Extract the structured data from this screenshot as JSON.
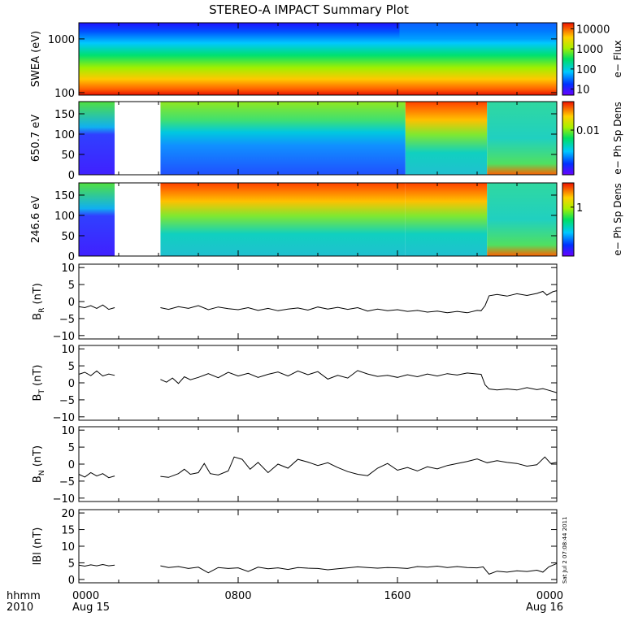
{
  "title": "STEREO-A IMPACT Summary Plot",
  "timestamp_label": "Sat Jul  2 07:08:44 2011",
  "time_axis": {
    "corner_labels": [
      "hhmm",
      "2010"
    ],
    "ticks": [
      {
        "hour": 0,
        "label": "0000",
        "date": "Aug 15"
      },
      {
        "hour": 8,
        "label": "0800",
        "date": ""
      },
      {
        "hour": 16,
        "label": "1600",
        "date": ""
      },
      {
        "hour": 24,
        "label": "0000",
        "date": "Aug 16"
      }
    ],
    "range_hours": [
      0,
      24
    ]
  },
  "colors": {
    "frame": "#000000",
    "line": "#000000",
    "gap": "#ffffff"
  },
  "chart_data": [
    {
      "type": "heatmap",
      "name": "swea",
      "ylabel": "SWEA (eV)",
      "ylog": true,
      "ylim": [
        90,
        2000
      ],
      "yticks": [
        {
          "v": 100,
          "label": "100"
        },
        {
          "v": 1000,
          "label": "1000"
        }
      ],
      "colorbar": {
        "label": "e− Flux",
        "log": true,
        "range": [
          5,
          20000
        ],
        "ticks": [
          {
            "v": 10,
            "label": "10"
          },
          {
            "v": 100,
            "label": "100"
          },
          {
            "v": 1000,
            "label": "1000"
          },
          {
            "v": 10000,
            "label": "10000"
          }
        ]
      },
      "gaps": [],
      "note_shift_hour": 16.1
    },
    {
      "type": "heatmap",
      "name": "pad650",
      "ylabel": "650.7 eV",
      "ylim": [
        0,
        180
      ],
      "yticks": [
        {
          "v": 0,
          "label": "0"
        },
        {
          "v": 50,
          "label": "50"
        },
        {
          "v": 100,
          "label": "100"
        },
        {
          "v": 150,
          "label": "150"
        }
      ],
      "colorbar": {
        "label": "e− Ph Sp Dens",
        "log": true,
        "range": [
          0.0008,
          0.05
        ],
        "ticks": [
          {
            "v": 0.01,
            "label": "0.01"
          }
        ]
      },
      "gaps": [
        [
          1.8,
          4.1
        ]
      ]
    },
    {
      "type": "heatmap",
      "name": "pad246",
      "ylabel": "246.6 eV",
      "ylim": [
        0,
        180
      ],
      "yticks": [
        {
          "v": 0,
          "label": "0"
        },
        {
          "v": 50,
          "label": "50"
        },
        {
          "v": 100,
          "label": "100"
        },
        {
          "v": 150,
          "label": "150"
        }
      ],
      "colorbar": {
        "label": "e− Ph Sp Dens",
        "log": true,
        "range": [
          0.08,
          3.5
        ],
        "ticks": [
          {
            "v": 1,
            "label": "1"
          }
        ]
      },
      "gaps": [
        [
          1.8,
          4.1
        ]
      ]
    },
    {
      "type": "line",
      "name": "br",
      "ylabel_main": "B",
      "ylabel_sub": "R",
      "ylabel_tail": " (nT)",
      "ylim": [
        -11,
        11
      ],
      "yticks": [
        {
          "v": -10,
          "label": "−10"
        },
        {
          "v": -5,
          "label": "−5"
        },
        {
          "v": 0,
          "label": "0"
        },
        {
          "v": 5,
          "label": "5"
        },
        {
          "v": 10,
          "label": "10"
        }
      ],
      "x": [
        0.0,
        0.3,
        0.6,
        0.9,
        1.2,
        1.5,
        1.8,
        4.1,
        4.5,
        5.0,
        5.5,
        6.0,
        6.5,
        7.0,
        7.5,
        8.0,
        8.5,
        9.0,
        9.5,
        10.0,
        10.5,
        11.0,
        11.5,
        12.0,
        12.5,
        13.0,
        13.5,
        14.0,
        14.5,
        15.0,
        15.5,
        16.0,
        16.5,
        17.0,
        17.5,
        18.0,
        18.5,
        19.0,
        19.5,
        20.0,
        20.2,
        20.4,
        20.6,
        21.0,
        21.5,
        22.0,
        22.5,
        23.0,
        23.3,
        23.5,
        23.8,
        24.0
      ],
      "y": [
        -1.5,
        -1.8,
        -1.2,
        -2.0,
        -1.0,
        -2.3,
        -1.8,
        -1.8,
        -2.3,
        -1.5,
        -2.0,
        -1.2,
        -2.4,
        -1.6,
        -2.1,
        -2.4,
        -1.8,
        -2.6,
        -2.0,
        -2.7,
        -2.2,
        -1.9,
        -2.5,
        -1.6,
        -2.2,
        -1.7,
        -2.3,
        -1.8,
        -2.8,
        -2.2,
        -2.7,
        -2.4,
        -2.9,
        -2.6,
        -3.1,
        -2.8,
        -3.3,
        -2.9,
        -3.3,
        -2.6,
        -2.7,
        -1.2,
        1.7,
        2.1,
        1.6,
        2.3,
        1.8,
        2.4,
        3.0,
        1.9,
        2.9,
        3.2
      ]
    },
    {
      "type": "line",
      "name": "bt",
      "ylabel_main": "B",
      "ylabel_sub": "T",
      "ylabel_tail": " (nT)",
      "ylim": [
        -11,
        11
      ],
      "yticks": [
        {
          "v": -10,
          "label": "−10"
        },
        {
          "v": -5,
          "label": "−5"
        },
        {
          "v": 0,
          "label": "0"
        },
        {
          "v": 5,
          "label": "5"
        },
        {
          "v": 10,
          "label": "10"
        }
      ],
      "x": [
        0.0,
        0.3,
        0.6,
        0.9,
        1.2,
        1.5,
        1.8,
        4.1,
        4.4,
        4.7,
        5.0,
        5.3,
        5.6,
        6.0,
        6.5,
        7.0,
        7.5,
        8.0,
        8.5,
        9.0,
        9.5,
        10.0,
        10.5,
        11.0,
        11.5,
        12.0,
        12.5,
        13.0,
        13.5,
        14.0,
        14.5,
        15.0,
        15.5,
        16.0,
        16.5,
        17.0,
        17.5,
        18.0,
        18.5,
        19.0,
        19.5,
        20.0,
        20.2,
        20.4,
        20.6,
        21.0,
        21.5,
        22.0,
        22.5,
        23.0,
        23.3,
        23.6,
        24.0
      ],
      "y": [
        2.5,
        3.1,
        2.1,
        3.5,
        2.0,
        2.6,
        2.2,
        1.0,
        0.2,
        1.4,
        -0.2,
        1.8,
        0.9,
        1.6,
        2.7,
        1.5,
        3.1,
        2.0,
        2.8,
        1.6,
        2.5,
        3.2,
        2.0,
        3.5,
        2.4,
        3.3,
        1.1,
        2.2,
        1.4,
        3.6,
        2.6,
        1.9,
        2.2,
        1.6,
        2.4,
        1.8,
        2.6,
        2.0,
        2.7,
        2.3,
        2.9,
        2.6,
        2.5,
        -0.6,
        -1.8,
        -2.1,
        -1.8,
        -2.1,
        -1.4,
        -2.0,
        -1.7,
        -2.2,
        -2.9
      ]
    },
    {
      "type": "line",
      "name": "bn",
      "ylabel_main": "B",
      "ylabel_sub": "N",
      "ylabel_tail": " (nT)",
      "ylim": [
        -11,
        11
      ],
      "yticks": [
        {
          "v": -10,
          "label": "−10"
        },
        {
          "v": -5,
          "label": "−5"
        },
        {
          "v": 0,
          "label": "0"
        },
        {
          "v": 5,
          "label": "5"
        },
        {
          "v": 10,
          "label": "10"
        }
      ],
      "x": [
        0.0,
        0.3,
        0.6,
        0.9,
        1.2,
        1.5,
        1.8,
        4.1,
        4.5,
        5.0,
        5.3,
        5.6,
        6.0,
        6.3,
        6.6,
        7.0,
        7.5,
        7.8,
        8.2,
        8.6,
        9.0,
        9.5,
        10.0,
        10.5,
        11.0,
        11.5,
        12.0,
        12.5,
        13.0,
        13.5,
        14.0,
        14.5,
        15.0,
        15.5,
        16.0,
        16.5,
        17.0,
        17.5,
        18.0,
        18.5,
        19.0,
        19.5,
        20.0,
        20.5,
        21.0,
        21.5,
        22.0,
        22.5,
        23.0,
        23.4,
        23.7,
        24.0
      ],
      "y": [
        -3.0,
        -3.8,
        -2.5,
        -3.5,
        -2.8,
        -4.0,
        -3.5,
        -3.6,
        -3.9,
        -2.8,
        -1.5,
        -3.0,
        -2.5,
        0.2,
        -2.8,
        -3.2,
        -2.0,
        2.1,
        1.4,
        -1.5,
        0.5,
        -2.5,
        0.0,
        -1.2,
        1.4,
        0.6,
        -0.4,
        0.4,
        -1.0,
        -2.2,
        -3.0,
        -3.4,
        -1.2,
        0.2,
        -1.8,
        -1.0,
        -2.0,
        -0.8,
        -1.4,
        -0.4,
        0.2,
        0.8,
        1.5,
        0.4,
        1.0,
        0.5,
        0.2,
        -0.6,
        -0.2,
        2.1,
        0.2,
        0.5
      ]
    },
    {
      "type": "line",
      "name": "bmag",
      "ylabel_main": "lBl",
      "ylabel_sub": "",
      "ylabel_tail": " (nT)",
      "ylim": [
        -1,
        21
      ],
      "yticks": [
        {
          "v": 0,
          "label": "0"
        },
        {
          "v": 5,
          "label": "5"
        },
        {
          "v": 10,
          "label": "10"
        },
        {
          "v": 15,
          "label": "15"
        },
        {
          "v": 20,
          "label": "20"
        }
      ],
      "x": [
        0.0,
        0.3,
        0.6,
        0.9,
        1.2,
        1.5,
        1.8,
        4.1,
        4.5,
        5.0,
        5.5,
        6.0,
        6.5,
        7.0,
        7.5,
        8.0,
        8.5,
        9.0,
        9.5,
        10.0,
        10.5,
        11.0,
        11.5,
        12.0,
        12.5,
        13.0,
        13.5,
        14.0,
        14.5,
        15.0,
        15.5,
        16.0,
        16.5,
        17.0,
        17.5,
        18.0,
        18.5,
        19.0,
        19.5,
        20.0,
        20.3,
        20.6,
        21.0,
        21.5,
        22.0,
        22.5,
        23.0,
        23.3,
        23.6,
        24.0
      ],
      "y": [
        4.3,
        4.0,
        4.4,
        4.1,
        4.5,
        4.1,
        4.3,
        4.1,
        3.6,
        3.9,
        3.3,
        3.7,
        2.0,
        3.6,
        3.3,
        3.5,
        2.4,
        3.7,
        3.2,
        3.5,
        3.0,
        3.6,
        3.4,
        3.3,
        2.9,
        3.2,
        3.5,
        3.8,
        3.6,
        3.4,
        3.6,
        3.5,
        3.3,
        3.9,
        3.7,
        4.0,
        3.6,
        3.9,
        3.6,
        3.5,
        3.8,
        1.6,
        2.5,
        2.2,
        2.6,
        2.4,
        2.8,
        2.2,
        3.8,
        4.8
      ]
    }
  ]
}
